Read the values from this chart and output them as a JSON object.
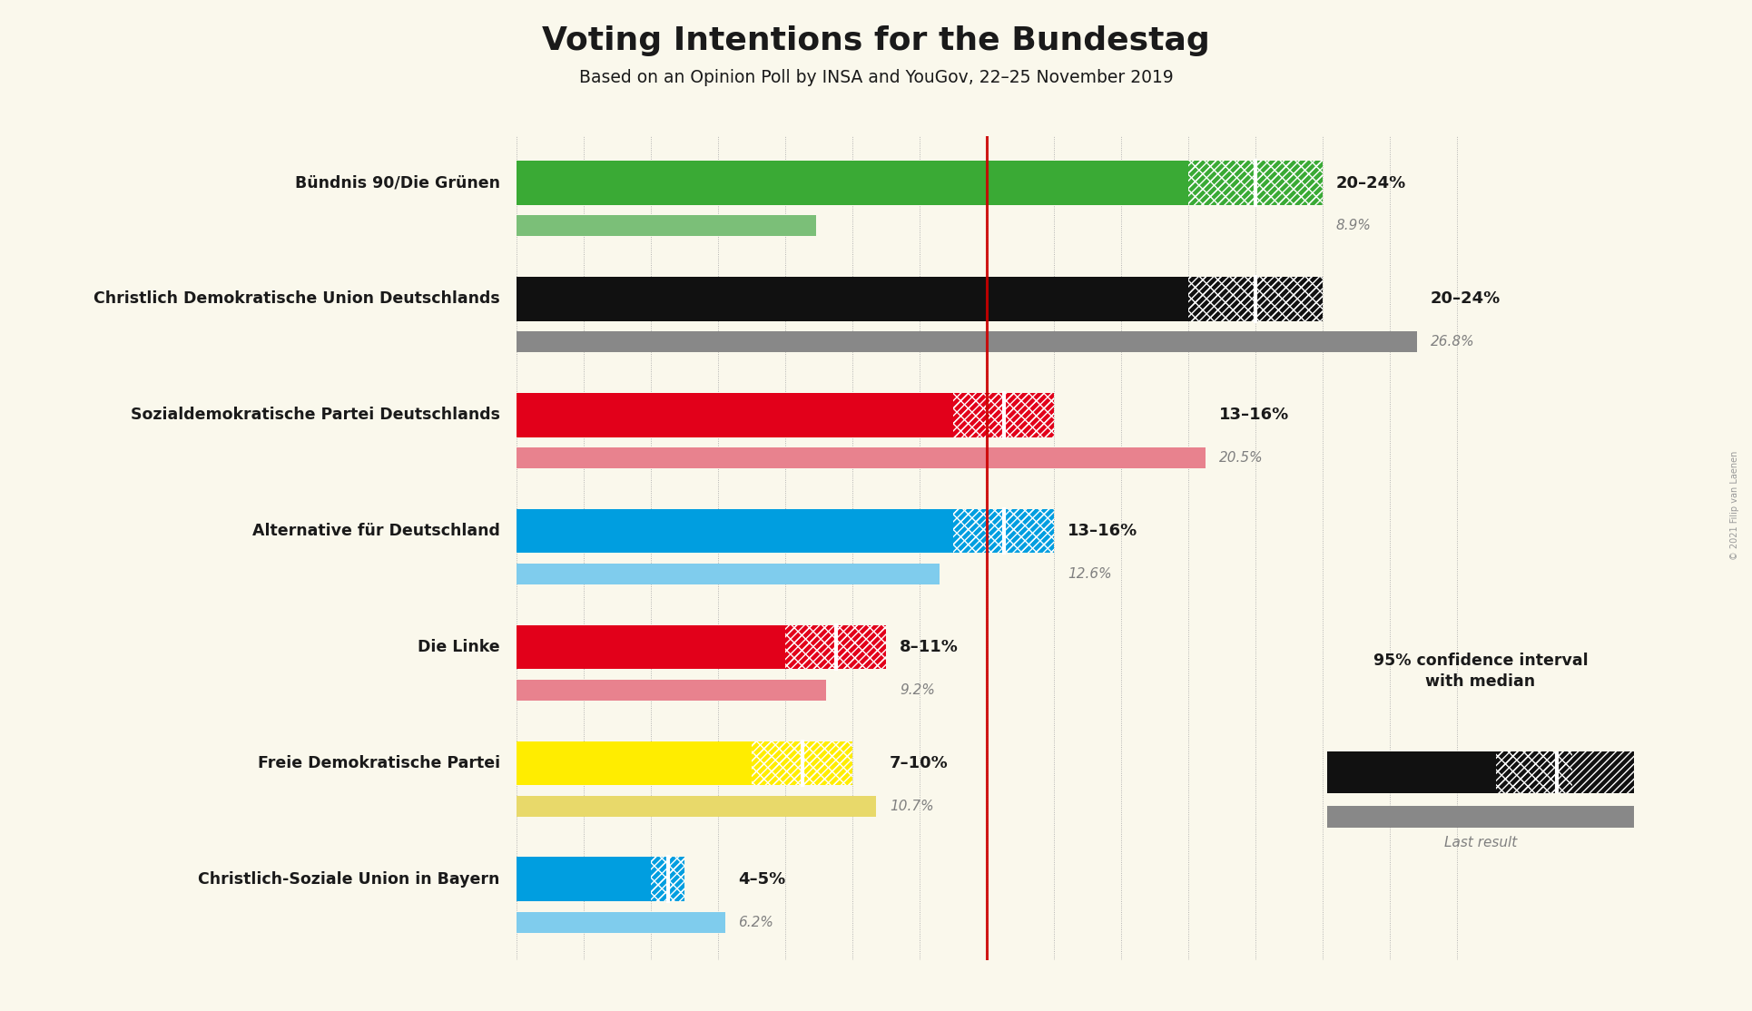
{
  "title": "Voting Intentions for the Bundestag",
  "subtitle": "Based on an Opinion Poll by INSA and YouGov, 22–25 November 2019",
  "background_color": "#faf8ec",
  "parties": [
    {
      "name": "Bündnis 90/Die Grünen",
      "ci_low": 20,
      "ci_high": 24,
      "last_result": 8.9,
      "color": "#3aaa35",
      "last_color": "#7bbf78",
      "label": "20–24%",
      "last_label": "8.9%"
    },
    {
      "name": "Christlich Demokratische Union Deutschlands",
      "ci_low": 20,
      "ci_high": 24,
      "last_result": 26.8,
      "color": "#111111",
      "last_color": "#888888",
      "label": "20–24%",
      "last_label": "26.8%"
    },
    {
      "name": "Sozialdemokratische Partei Deutschlands",
      "ci_low": 13,
      "ci_high": 16,
      "last_result": 20.5,
      "color": "#e2001a",
      "last_color": "#e8828e",
      "label": "13–16%",
      "last_label": "20.5%"
    },
    {
      "name": "Alternative für Deutschland",
      "ci_low": 13,
      "ci_high": 16,
      "last_result": 12.6,
      "color": "#009ee0",
      "last_color": "#7fcced",
      "label": "13–16%",
      "last_label": "12.6%"
    },
    {
      "name": "Die Linke",
      "ci_low": 8,
      "ci_high": 11,
      "last_result": 9.2,
      "color": "#e2001a",
      "last_color": "#e8828e",
      "label": "8–11%",
      "last_label": "9.2%"
    },
    {
      "name": "Freie Demokratische Partei",
      "ci_low": 7,
      "ci_high": 10,
      "last_result": 10.7,
      "color": "#ffed00",
      "last_color": "#e8d96a",
      "label": "7–10%",
      "last_label": "10.7%"
    },
    {
      "name": "Christlich-Soziale Union in Bayern",
      "ci_low": 4,
      "ci_high": 5,
      "last_result": 6.2,
      "color": "#009ee0",
      "last_color": "#7fcced",
      "label": "4–5%",
      "last_label": "6.2%"
    }
  ],
  "xlim_max": 30,
  "median_line_x": 14.0,
  "copyright": "© 2021 Filip van Laenen",
  "legend_text1": "95% confidence interval",
  "legend_text2": "with median",
  "legend_last": "Last result"
}
